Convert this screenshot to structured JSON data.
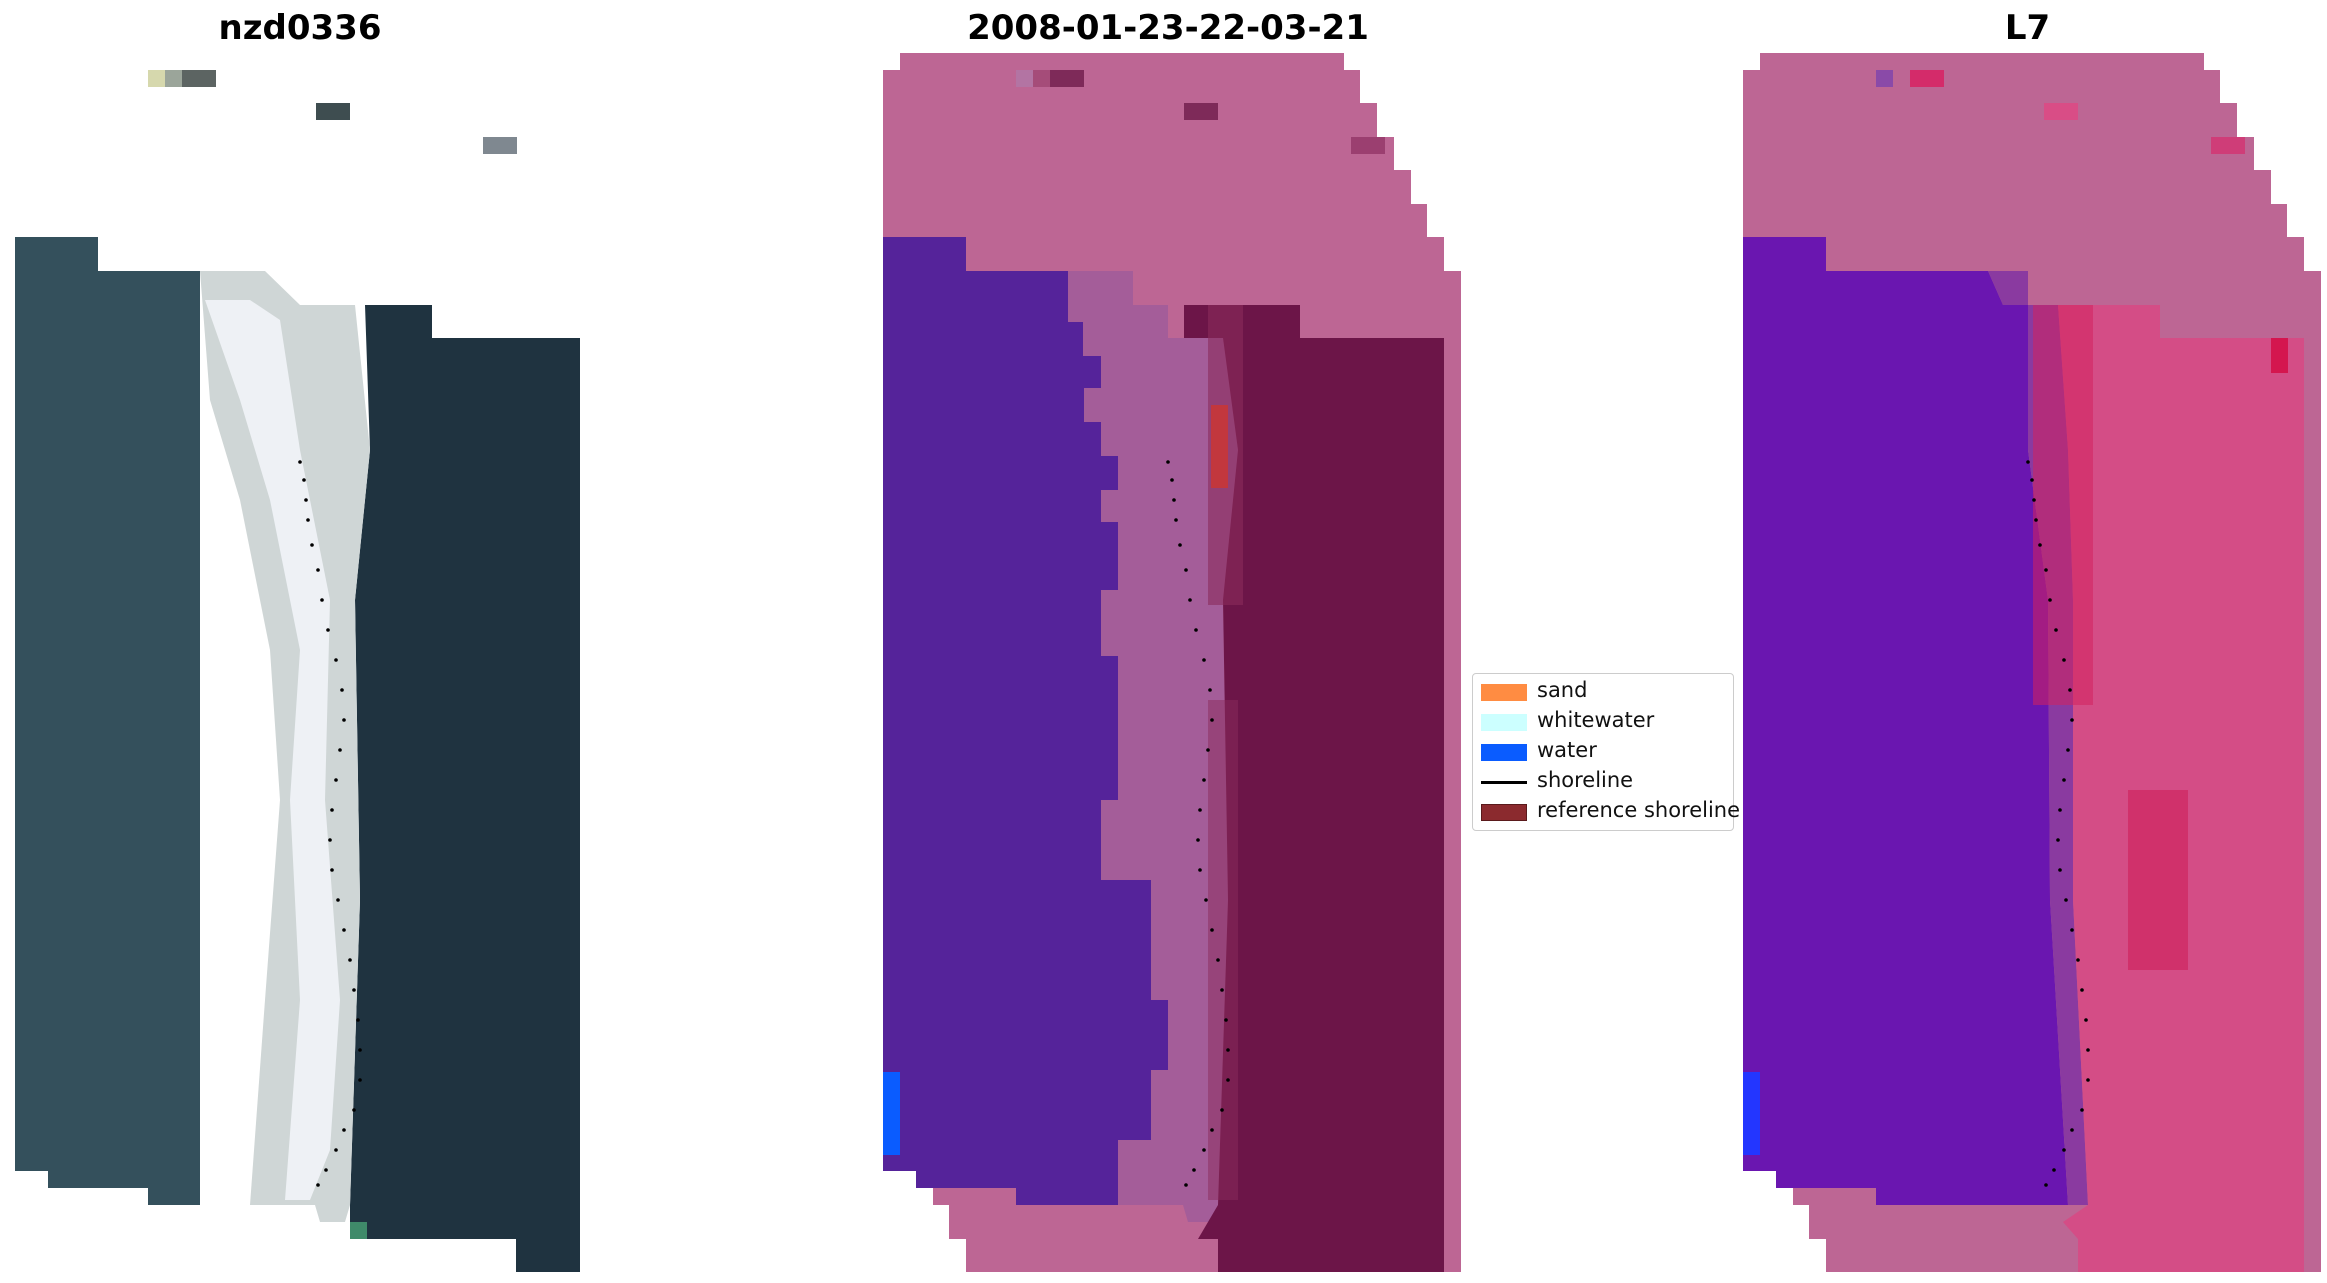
{
  "panels": [
    {
      "title": "nzd0336"
    },
    {
      "title": "2008-01-23-22-03-21"
    },
    {
      "title": "L7"
    }
  ],
  "legend": {
    "items": [
      {
        "label": "sand",
        "color": "#ff8c42",
        "kind": "patch"
      },
      {
        "label": "whitewater",
        "color": "#ccffff",
        "kind": "patch"
      },
      {
        "label": "water",
        "color": "#0a5cff",
        "kind": "patch"
      },
      {
        "label": "shoreline",
        "color": "#000000",
        "kind": "line"
      },
      {
        "label": "reference shoreline",
        "color": "#8b2a2e",
        "kind": "patch"
      }
    ]
  },
  "colors": {
    "rgb_water": "#34505c",
    "rgb_land": "#1f3340",
    "rgb_beach": "#dfe3e6",
    "classified_nodata": "#bd6694",
    "classified_water": "#55239a",
    "classified_sand_overlay": "#a45d99",
    "classified_land": "#6c1548",
    "index_water": "#6a16b0",
    "index_land": "#d44d86",
    "shoreline_dots": "#000000"
  }
}
